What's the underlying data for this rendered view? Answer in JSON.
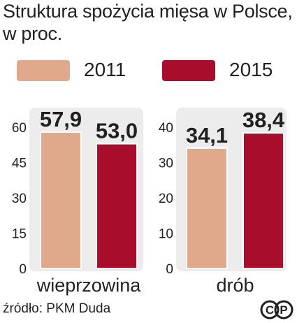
{
  "title": "Struktura spożycia mięsa w Polsce, w proc.",
  "legend": [
    {
      "label": "2011",
      "color": "#e0a98c"
    },
    {
      "label": "2015",
      "color": "#a80d2b"
    }
  ],
  "source": "źródło: PKM Duda",
  "logo": {
    "label": "CP",
    "icon": "copyright-pap-logo"
  },
  "chart_data": [
    {
      "type": "bar",
      "categories": [
        "wieprzowina"
      ],
      "series": [
        {
          "name": "2011",
          "values": [
            57.9
          ],
          "labels": [
            "57,9"
          ],
          "color": "#e0a98c"
        },
        {
          "name": "2015",
          "values": [
            53.0
          ],
          "labels": [
            "53,0"
          ],
          "color": "#a80d2b"
        }
      ],
      "ylim": [
        0,
        60
      ],
      "yticks": [
        "0",
        "15",
        "30",
        "45",
        "60"
      ],
      "ytick_values": [
        0,
        15,
        30,
        45,
        60
      ],
      "grid": false
    },
    {
      "type": "bar",
      "categories": [
        "drób"
      ],
      "series": [
        {
          "name": "2011",
          "values": [
            34.1
          ],
          "labels": [
            "34,1"
          ],
          "color": "#e0a98c"
        },
        {
          "name": "2015",
          "values": [
            38.4
          ],
          "labels": [
            "38,4"
          ],
          "color": "#a80d2b"
        }
      ],
      "ylim": [
        0,
        40
      ],
      "yticks": [
        "0",
        "10",
        "20",
        "30",
        "40"
      ],
      "ytick_values": [
        0,
        10,
        20,
        30,
        40
      ],
      "grid": false
    }
  ]
}
